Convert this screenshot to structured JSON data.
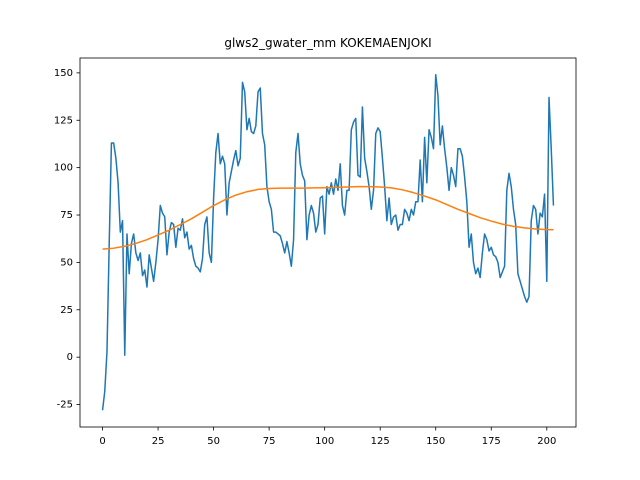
{
  "chart_data": {
    "type": "line",
    "title": "glws2_gwater_mm KOKEMAENJOKI",
    "x": [
      0,
      1,
      2,
      3,
      4,
      5,
      6,
      7,
      8,
      9,
      10,
      11,
      12,
      13,
      14,
      15,
      16,
      17,
      18,
      19,
      20,
      21,
      22,
      23,
      24,
      25,
      26,
      27,
      28,
      29,
      30,
      31,
      32,
      33,
      34,
      35,
      36,
      37,
      38,
      39,
      40,
      41,
      42,
      43,
      44,
      45,
      46,
      47,
      48,
      49,
      50,
      51,
      52,
      53,
      54,
      55,
      56,
      57,
      58,
      59,
      60,
      61,
      62,
      63,
      64,
      65,
      66,
      67,
      68,
      69,
      70,
      71,
      72,
      73,
      74,
      75,
      76,
      77,
      78,
      79,
      80,
      81,
      82,
      83,
      84,
      85,
      86,
      87,
      88,
      89,
      90,
      91,
      92,
      93,
      94,
      95,
      96,
      97,
      98,
      99,
      100,
      101,
      102,
      103,
      104,
      105,
      106,
      107,
      108,
      109,
      110,
      111,
      112,
      113,
      114,
      115,
      116,
      117,
      118,
      119,
      120,
      121,
      122,
      123,
      124,
      125,
      126,
      127,
      128,
      129,
      130,
      131,
      132,
      133,
      134,
      135,
      136,
      137,
      138,
      139,
      140,
      141,
      142,
      143,
      144,
      145,
      146,
      147,
      148,
      149,
      150,
      151,
      152,
      153,
      154,
      155,
      156,
      157,
      158,
      159,
      160,
      161,
      162,
      163,
      164,
      165,
      166,
      167,
      168,
      169,
      170,
      171,
      172,
      173,
      174,
      175,
      176,
      177,
      178,
      179,
      180,
      181,
      182,
      183,
      184,
      185,
      186,
      187,
      188,
      189,
      190,
      191,
      192,
      193,
      194,
      195,
      196,
      197,
      198,
      199,
      200,
      201,
      202,
      203
    ],
    "series": [
      {
        "color": "#1f77b4",
        "values": [
          -28,
          -18,
          3,
          60,
          113,
          113,
          105,
          92,
          66,
          72,
          1,
          65,
          44,
          60,
          65,
          55,
          51,
          55,
          43,
          46,
          37,
          54,
          47,
          40,
          50,
          62,
          80,
          76,
          74,
          54,
          66,
          71,
          70,
          58,
          68,
          67,
          73,
          63,
          66,
          57,
          59,
          52,
          48,
          47,
          45,
          52,
          70,
          74,
          55,
          50,
          84,
          108,
          118,
          102,
          106,
          102,
          75,
          92,
          98,
          104,
          109,
          101,
          105,
          145,
          140,
          120,
          126,
          119,
          118,
          122,
          140,
          142,
          118,
          112,
          90,
          82,
          78,
          66,
          66,
          65,
          64,
          60,
          55,
          61,
          55,
          48,
          62,
          108,
          118,
          102,
          96,
          93,
          62,
          75,
          80,
          76,
          66,
          70,
          84,
          85,
          65,
          90,
          86,
          92,
          86,
          94,
          88,
          102,
          80,
          75,
          88,
          88,
          120,
          124,
          126,
          96,
          95,
          132,
          105,
          98,
          90,
          78,
          88,
          118,
          121,
          119,
          105,
          90,
          72,
          84,
          70,
          74,
          75,
          67,
          70,
          70,
          78,
          76,
          72,
          78,
          75,
          82,
          82,
          104,
          82,
          116,
          92,
          120,
          116,
          110,
          149,
          138,
          112,
          122,
          110,
          100,
          88,
          100,
          96,
          90,
          110,
          110,
          106,
          95,
          82,
          58,
          65,
          50,
          44,
          47,
          42,
          55,
          65,
          62,
          56,
          58,
          54,
          53,
          50,
          42,
          45,
          48,
          88,
          97,
          90,
          78,
          70,
          44,
          40,
          36,
          32,
          29,
          32,
          72,
          80,
          78,
          65,
          76,
          74,
          86,
          40,
          137,
          110,
          80
        ]
      },
      {
        "color": "#ff7f0e",
        "x": [
          0,
          5,
          10,
          15,
          20,
          25,
          30,
          35,
          40,
          45,
          50,
          55,
          60,
          65,
          70,
          75,
          80,
          85,
          90,
          95,
          100,
          105,
          110,
          115,
          120,
          125,
          130,
          135,
          140,
          145,
          150,
          155,
          160,
          165,
          170,
          175,
          180,
          185,
          190,
          195,
          200,
          203
        ],
        "values": [
          57,
          57.5,
          58.5,
          60,
          62,
          64.5,
          67,
          70,
          73,
          76.5,
          80,
          83,
          85.5,
          87.3,
          88.5,
          89,
          89.2,
          89.2,
          89.2,
          89.3,
          89.4,
          89.6,
          89.8,
          90,
          90,
          89.8,
          89.3,
          88.3,
          86.8,
          85,
          83,
          80.5,
          78,
          75.8,
          73.6,
          71.8,
          70.2,
          69,
          68.2,
          67.6,
          67.3,
          67.2
        ]
      }
    ],
    "xlim": [
      -10.15,
      213.15
    ],
    "xticks": [
      0,
      25,
      50,
      75,
      100,
      125,
      150,
      175,
      200
    ],
    "ylim": [
      -36.85,
      157.85
    ],
    "yticks": [
      -25,
      0,
      25,
      50,
      75,
      100,
      125,
      150
    ]
  }
}
